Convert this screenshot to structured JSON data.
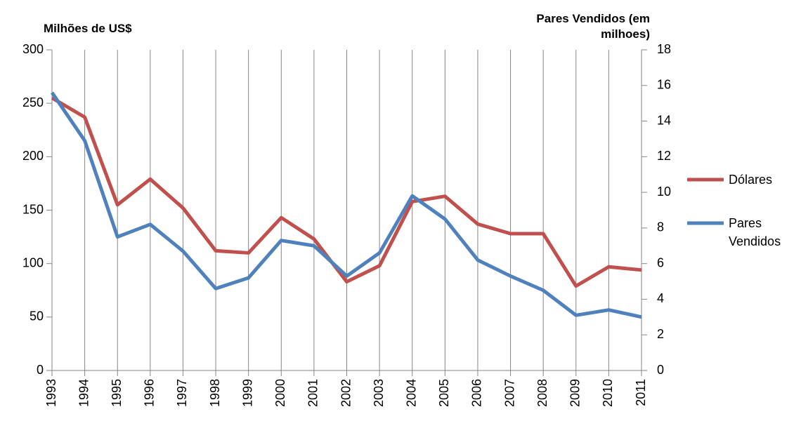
{
  "chart_data": {
    "type": "line",
    "y_label": "Milhões de US$",
    "y2_label": "Pares Vendidos (em milhoes)",
    "categories": [
      "1993",
      "1994",
      "1995",
      "1996",
      "1997",
      "1998",
      "1999",
      "2000",
      "2001",
      "2002",
      "2003",
      "2004",
      "2005",
      "2006",
      "2007",
      "2008",
      "2009",
      "2010",
      "2011"
    ],
    "series": [
      {
        "name": "Dólares",
        "color": "#c0504d",
        "values": [
          255,
          237,
          155,
          179,
          152,
          112,
          110,
          143,
          123,
          83,
          98,
          158,
          163,
          137,
          128,
          128,
          79,
          97,
          94
        ]
      },
      {
        "name": "Pares Vendidos",
        "color": "#4f81bd",
        "axis": "y2",
        "values": [
          15.6,
          12.9,
          7.5,
          8.2,
          6.7,
          4.6,
          5.2,
          7.3,
          7.0,
          5.3,
          6.6,
          9.8,
          8.5,
          6.2,
          5.3,
          4.5,
          3.1,
          3.4,
          3.0
        ]
      }
    ],
    "ylim": [
      0,
      300
    ],
    "yticks": [
      0,
      50,
      100,
      150,
      200,
      250,
      300
    ],
    "y2lim": [
      0,
      18
    ],
    "y2ticks": [
      0,
      2,
      4,
      6,
      8,
      10,
      12,
      14,
      16,
      18
    ],
    "grid": "x",
    "legend": "right"
  }
}
